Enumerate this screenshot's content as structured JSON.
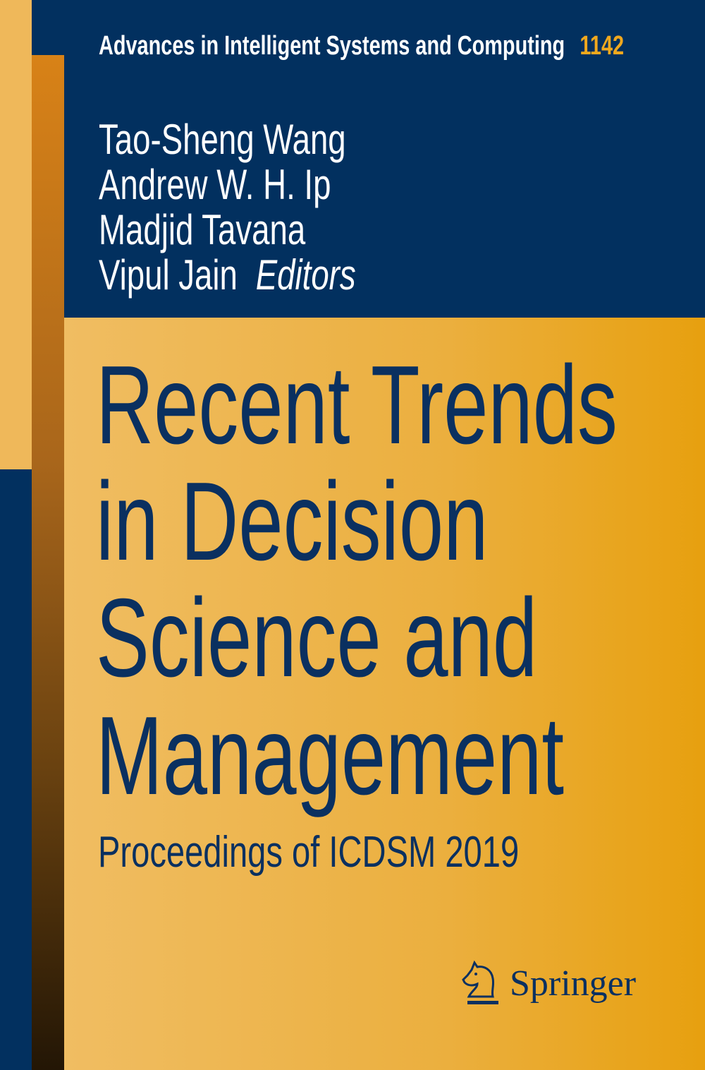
{
  "series": {
    "name": "Advances in Intelligent Systems and Computing",
    "volume": "1142"
  },
  "authors": [
    "Tao-Sheng Wang",
    "Andrew W. H. Ip",
    "Madjid Tavana",
    "Vipul Jain"
  ],
  "editors_label": "Editors",
  "title_lines": [
    "Recent Trends",
    "in Decision",
    "Science and",
    "Management"
  ],
  "subtitle": "Proceedings of ICDSM 2019",
  "publisher": {
    "name": "Springer",
    "icon": "knight-horse-icon"
  },
  "colors": {
    "navy": "#02305f",
    "orange": "#ebaf3e",
    "accent": "#f0a81e"
  }
}
